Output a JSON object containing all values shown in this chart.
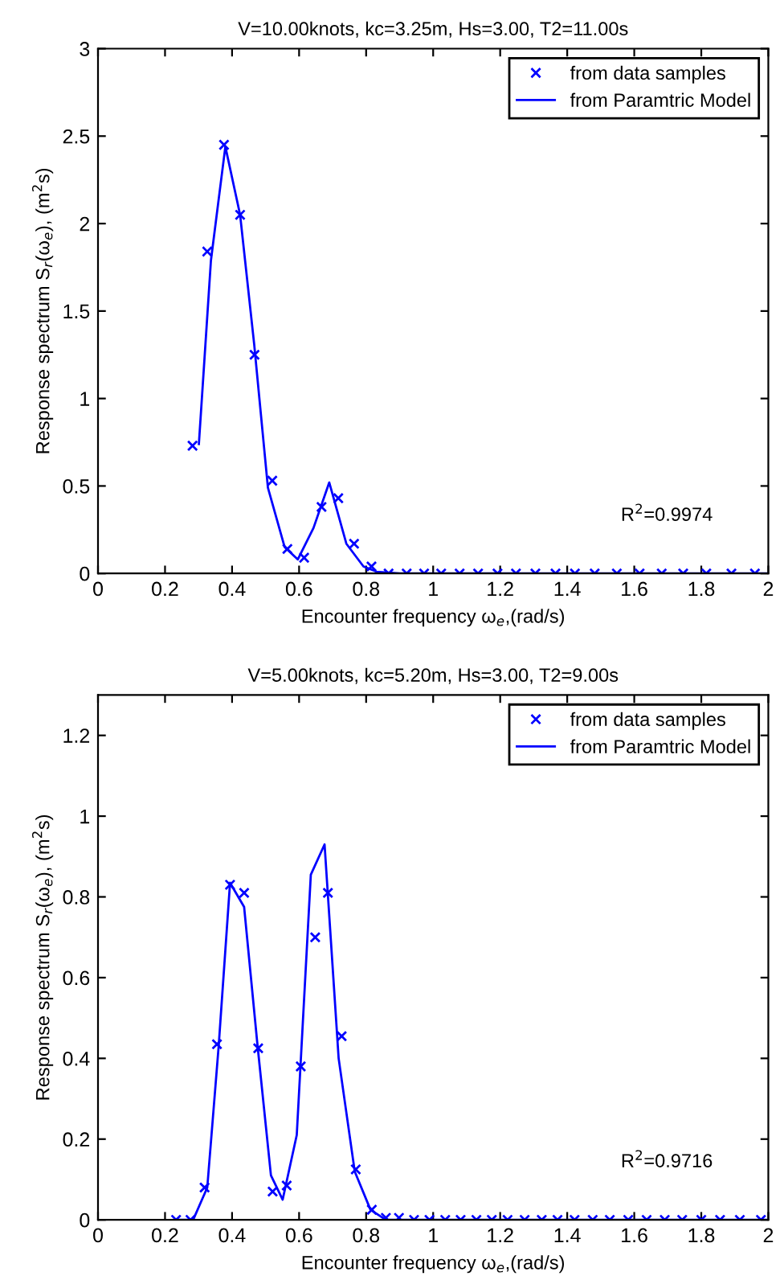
{
  "chart_data": [
    {
      "type": "line",
      "title": "V=10.00knots, kc=3.25m, Hs=3.00, T2=11.00s",
      "xlabel": "Encounter frequency ω$_{e}$,(rad/s)",
      "ylabel": "Response spectrum S$_{r}$(ω$_{e}$), (m$^{2}$s)",
      "annotations": [
        "R$^{2}$=0.9974"
      ],
      "xlim": [
        0,
        2
      ],
      "xticks": [
        0,
        0.2,
        0.4,
        0.6,
        0.8,
        1,
        1.2,
        1.4,
        1.6,
        1.8,
        2
      ],
      "ylim": [
        0,
        3
      ],
      "yticks": [
        0,
        0.5,
        1,
        1.5,
        2,
        2.5,
        3
      ],
      "grid": false,
      "legend": "top right",
      "series": [
        {
          "name": "from data samples",
          "type": "scatter",
          "marker": "cross",
          "color": "#0000ff",
          "x": [
            0.282,
            0.326,
            0.376,
            0.424,
            0.467,
            0.52,
            0.565,
            0.615,
            0.667,
            0.717,
            0.764,
            0.816,
            0.867,
            0.921,
            0.973,
            1.024,
            1.079,
            1.134,
            1.192,
            1.247,
            1.305,
            1.365,
            1.423,
            1.482,
            1.548,
            1.616,
            1.682,
            1.746,
            1.815,
            1.89,
            1.96
          ],
          "values": [
            0.73,
            1.84,
            2.45,
            2.05,
            1.25,
            0.53,
            0.14,
            0.09,
            0.38,
            0.43,
            0.17,
            0.04,
            0,
            0,
            0,
            0,
            0,
            0,
            0,
            0,
            0,
            0,
            0,
            0,
            0,
            0,
            0,
            0,
            0,
            0,
            0
          ]
        },
        {
          "name": "from Paramtric Model",
          "marker": "none",
          "line_style": "solid",
          "color": "#0000ff",
          "x": [
            0.301,
            0.337,
            0.38,
            0.424,
            0.466,
            0.507,
            0.557,
            0.596,
            0.643,
            0.69,
            0.741,
            0.792,
            0.831,
            0.9,
            1.2,
            1.5,
            1.8,
            2
          ],
          "values": [
            0.74,
            1.79,
            2.44,
            2.05,
            1.31,
            0.49,
            0.15,
            0.08,
            0.26,
            0.52,
            0.17,
            0.04,
            0.01,
            0,
            0,
            0,
            0,
            0
          ]
        }
      ]
    },
    {
      "type": "line",
      "title": "V=5.00knots, kc=5.20m, Hs=3.00, T2=9.00s",
      "xlabel": "Encounter frequency ω$_{e}$,(rad/s)",
      "ylabel": "Response spectrum S$_{r}$(ω$_{e}$), (m$^{2}$s)",
      "annotations": [
        "R$^{2}$=0.9716"
      ],
      "xlim": [
        0,
        2
      ],
      "xticks": [
        0,
        0.2,
        0.4,
        0.6,
        0.8,
        1,
        1.2,
        1.4,
        1.6,
        1.8,
        2
      ],
      "ylim": [
        0,
        1.3
      ],
      "yticks": [
        0,
        0.2,
        0.4,
        0.6,
        0.8,
        1,
        1.2
      ],
      "grid": false,
      "legend": "top right",
      "series": [
        {
          "name": "from data samples",
          "type": "scatter",
          "marker": "cross",
          "color": "#0000ff",
          "x": [
            0.233,
            0.276,
            0.318,
            0.355,
            0.394,
            0.436,
            0.478,
            0.521,
            0.563,
            0.605,
            0.648,
            0.686,
            0.727,
            0.769,
            0.817,
            0.859,
            0.898,
            0.943,
            0.989,
            1.036,
            1.082,
            1.129,
            1.175,
            1.222,
            1.273,
            1.324,
            1.371,
            1.422,
            1.476,
            1.527,
            1.582,
            1.637,
            1.691,
            1.743,
            1.8,
            1.856,
            1.915,
            1.978
          ],
          "values": [
            0,
            0,
            0.08,
            0.435,
            0.83,
            0.81,
            0.425,
            0.07,
            0.085,
            0.38,
            0.7,
            0.81,
            0.455,
            0.125,
            0.025,
            0.005,
            0.005,
            0,
            0,
            0,
            0,
            0,
            0,
            0,
            0,
            0,
            0,
            0,
            0,
            0,
            0,
            0,
            0,
            0,
            0,
            0,
            0,
            0
          ]
        },
        {
          "name": "from Paramtric Model",
          "marker": "none",
          "line_style": "solid",
          "color": "#0000ff",
          "x": [
            0.242,
            0.284,
            0.326,
            0.36,
            0.394,
            0.436,
            0.475,
            0.516,
            0.551,
            0.593,
            0.635,
            0.676,
            0.718,
            0.766,
            0.813,
            0.859,
            1.0,
            1.5,
            2
          ],
          "values": [
            0,
            0,
            0.08,
            0.43,
            0.835,
            0.775,
            0.44,
            0.11,
            0.05,
            0.21,
            0.855,
            0.93,
            0.4,
            0.12,
            0.025,
            0,
            0,
            0,
            0
          ]
        }
      ]
    }
  ]
}
